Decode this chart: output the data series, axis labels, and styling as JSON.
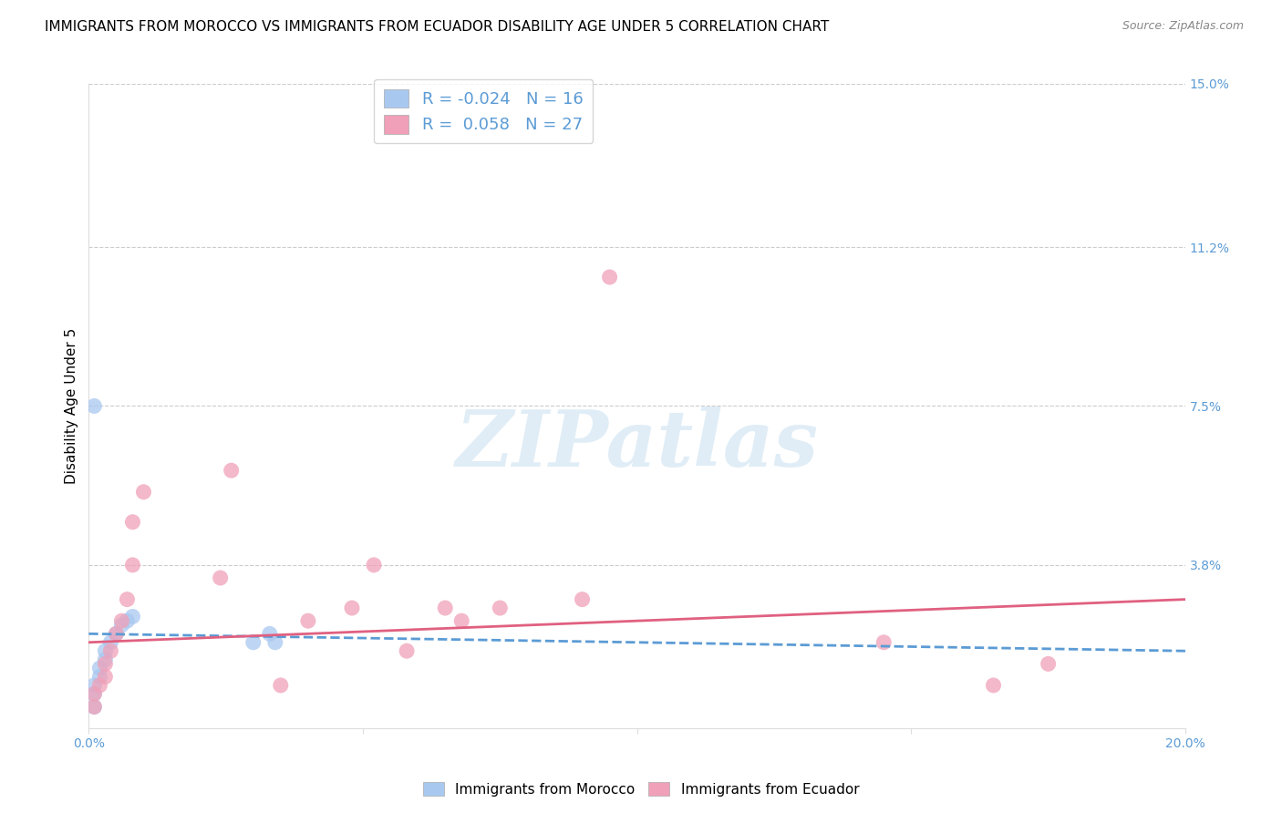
{
  "title": "IMMIGRANTS FROM MOROCCO VS IMMIGRANTS FROM ECUADOR DISABILITY AGE UNDER 5 CORRELATION CHART",
  "source": "Source: ZipAtlas.com",
  "ylabel": "Disability Age Under 5",
  "xlim": [
    0.0,
    0.2
  ],
  "ylim": [
    0.0,
    0.15
  ],
  "yticks": [
    0.0,
    0.038,
    0.075,
    0.112,
    0.15
  ],
  "ytick_labels": [
    "",
    "3.8%",
    "7.5%",
    "11.2%",
    "15.0%"
  ],
  "xticks": [
    0.0,
    0.05,
    0.1,
    0.15,
    0.2
  ],
  "xtick_labels": [
    "0.0%",
    "",
    "",
    "",
    "20.0%"
  ],
  "morocco_color": "#a8c8f0",
  "ecuador_color": "#f0a0b8",
  "morocco_line_color": "#5b9bd5",
  "ecuador_line_color": "#e06080",
  "morocco_R": -0.024,
  "morocco_N": 16,
  "ecuador_R": 0.058,
  "ecuador_N": 27,
  "morocco_x": [
    0.001,
    0.001,
    0.001,
    0.002,
    0.002,
    0.003,
    0.003,
    0.004,
    0.005,
    0.006,
    0.007,
    0.008,
    0.03,
    0.033,
    0.034,
    0.001
  ],
  "morocco_y": [
    0.005,
    0.008,
    0.01,
    0.012,
    0.014,
    0.016,
    0.018,
    0.02,
    0.022,
    0.024,
    0.025,
    0.026,
    0.02,
    0.022,
    0.02,
    0.075
  ],
  "ecuador_x": [
    0.001,
    0.001,
    0.002,
    0.003,
    0.003,
    0.004,
    0.005,
    0.006,
    0.007,
    0.008,
    0.008,
    0.01,
    0.024,
    0.026,
    0.035,
    0.04,
    0.048,
    0.052,
    0.058,
    0.065,
    0.068,
    0.075,
    0.09,
    0.095,
    0.145,
    0.165,
    0.175
  ],
  "ecuador_y": [
    0.005,
    0.008,
    0.01,
    0.012,
    0.015,
    0.018,
    0.022,
    0.025,
    0.03,
    0.038,
    0.048,
    0.055,
    0.035,
    0.06,
    0.01,
    0.025,
    0.028,
    0.038,
    0.018,
    0.028,
    0.025,
    0.028,
    0.03,
    0.105,
    0.02,
    0.01,
    0.015
  ],
  "watermark_text": "ZIPatlas",
  "background_color": "#ffffff",
  "grid_color": "#cccccc",
  "title_fontsize": 11,
  "axis_label_fontsize": 11,
  "tick_fontsize": 10,
  "tick_color": "#5b9bd5",
  "legend_label_morocco": "R = -0.024   N = 16",
  "legend_label_ecuador": "R =  0.058   N = 27",
  "bottom_legend_morocco": "Immigrants from Morocco",
  "bottom_legend_ecuador": "Immigrants from Ecuador"
}
